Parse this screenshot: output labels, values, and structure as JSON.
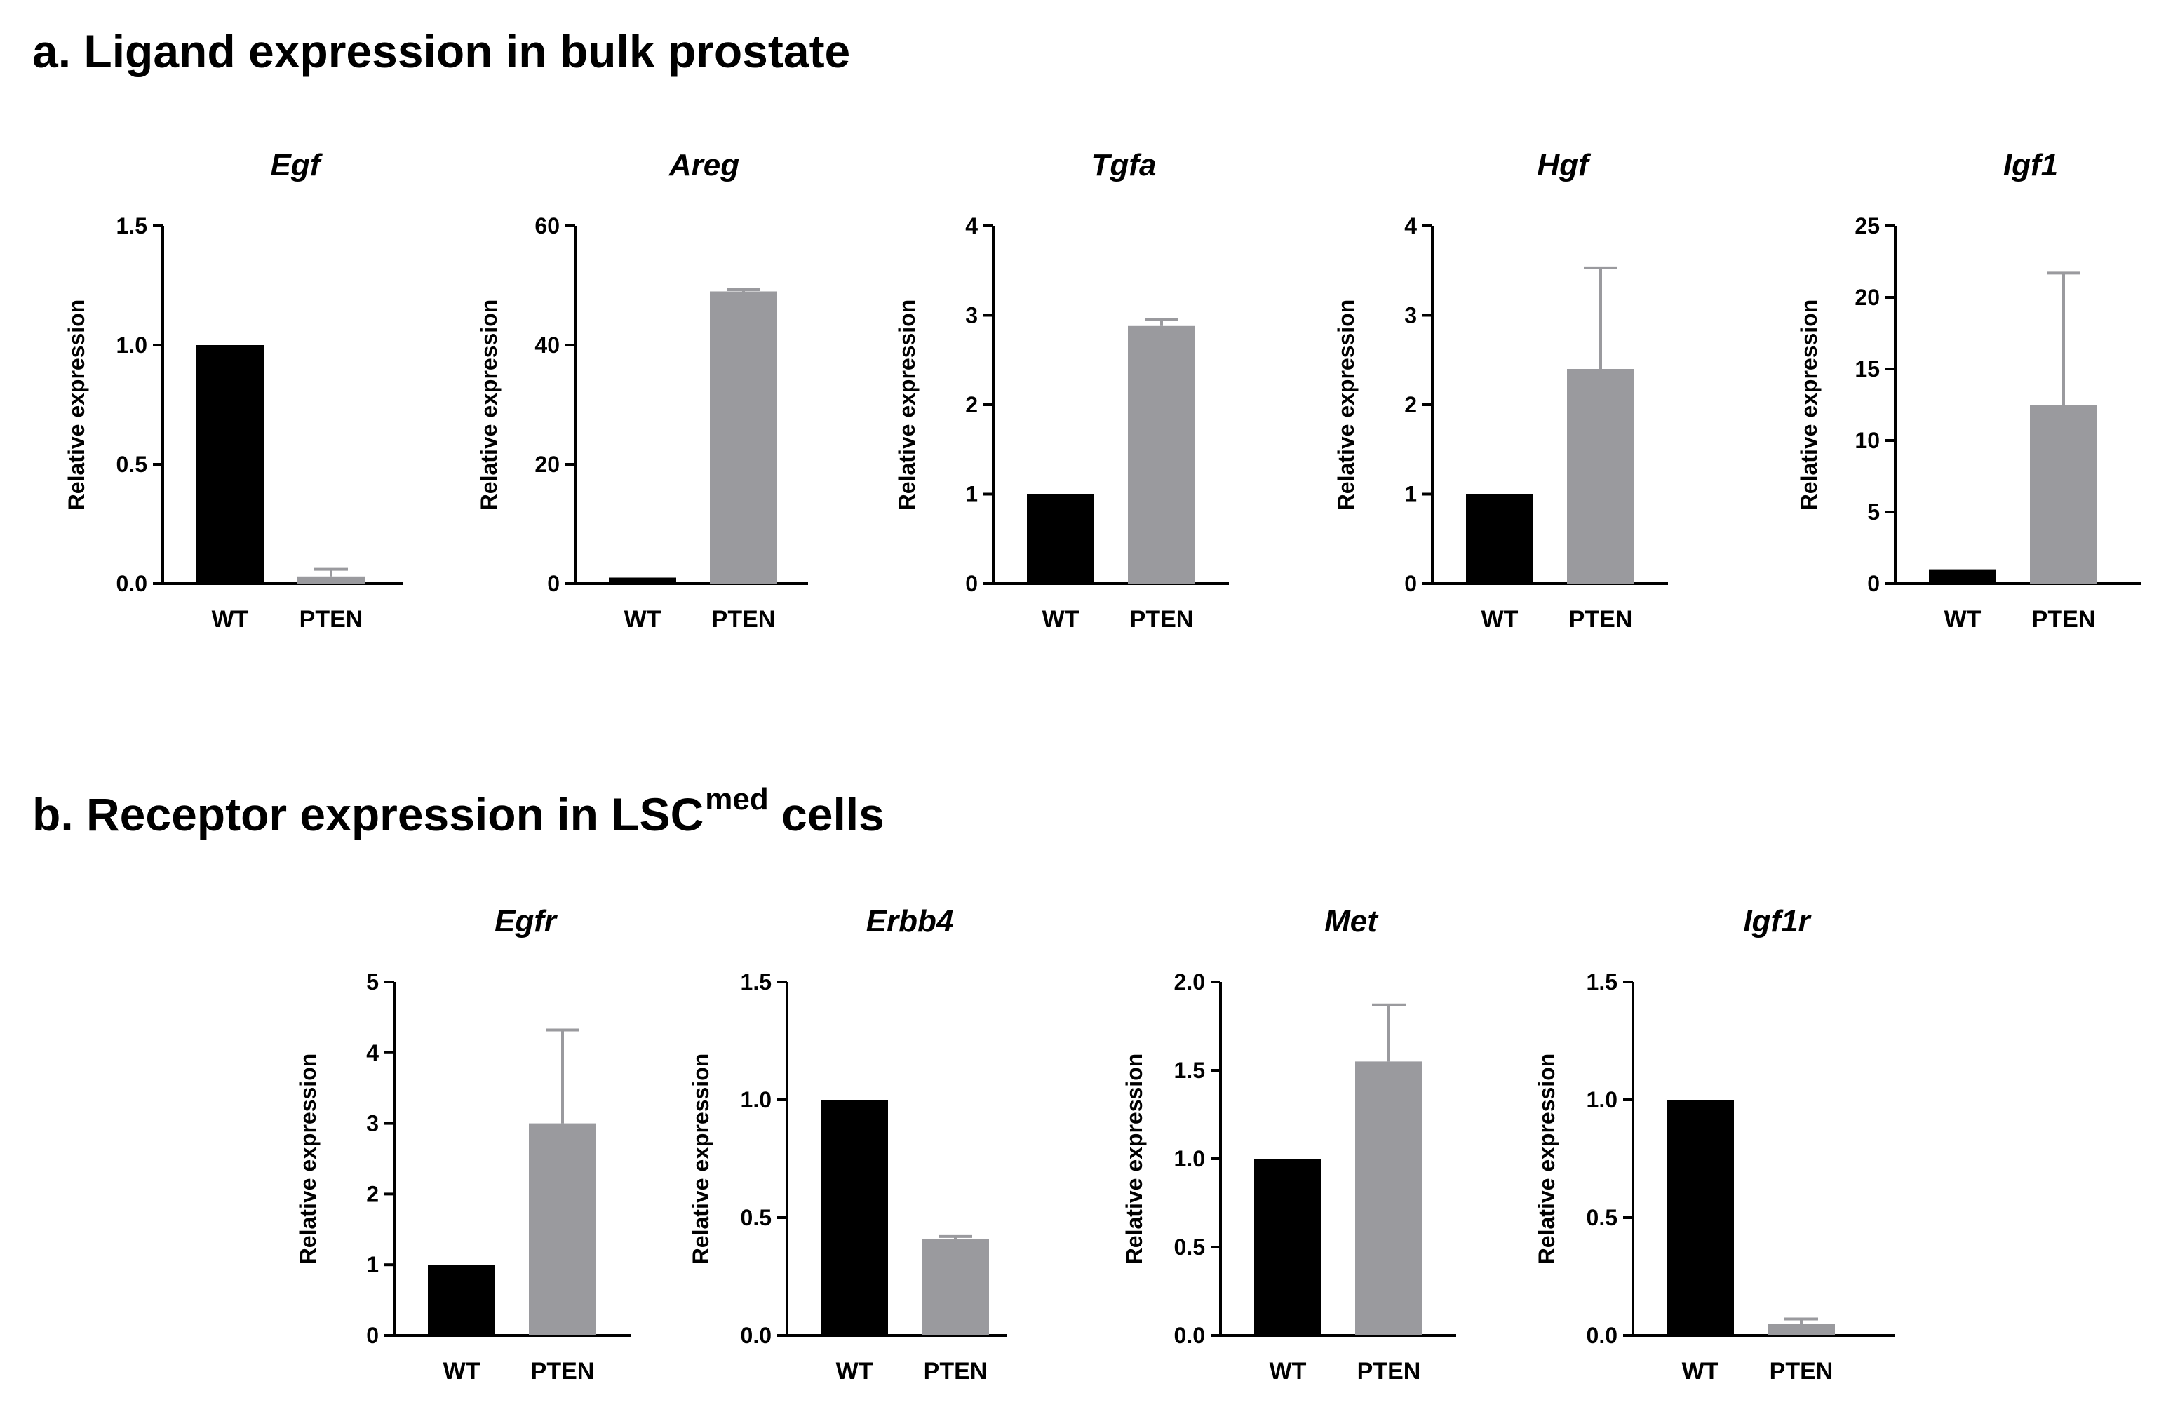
{
  "section_a": {
    "prefix": "a. Ligand expression in bulk prostate"
  },
  "section_b": {
    "prefix": "b. Receptor expression in LSC",
    "superscript": "med",
    "suffix": " cells"
  },
  "colors": {
    "WT": "#000000",
    "PTEN": "#9a9a9e",
    "axis": "#000000"
  },
  "chart_data": [
    {
      "type": "bar",
      "title": "Egf",
      "ylabel": "Relative expression",
      "categories": [
        "WT",
        "PTEN"
      ],
      "values": [
        1.0,
        0.03
      ],
      "error": [
        0,
        0.03
      ],
      "ylim": [
        0,
        1.5
      ],
      "yticks": [
        "0.0",
        "0.5",
        "1.0",
        "1.5"
      ]
    },
    {
      "type": "bar",
      "title": "Areg",
      "ylabel": "Relative expression",
      "categories": [
        "WT",
        "PTEN"
      ],
      "values": [
        1.0,
        49.0
      ],
      "error": [
        0,
        0.3
      ],
      "ylim": [
        0,
        60
      ],
      "yticks": [
        "0",
        "20",
        "40",
        "60"
      ]
    },
    {
      "type": "bar",
      "title": "Tgfa",
      "ylabel": "Relative expression",
      "categories": [
        "WT",
        "PTEN"
      ],
      "values": [
        1.0,
        2.88
      ],
      "error": [
        0,
        0.07
      ],
      "ylim": [
        0,
        4
      ],
      "yticks": [
        "0",
        "1",
        "2",
        "3",
        "4"
      ]
    },
    {
      "type": "bar",
      "title": "Hgf",
      "ylabel": "Relative expression",
      "categories": [
        "WT",
        "PTEN"
      ],
      "values": [
        1.0,
        2.4
      ],
      "error": [
        0,
        1.13
      ],
      "ylim": [
        0,
        4
      ],
      "yticks": [
        "0",
        "1",
        "2",
        "3",
        "4"
      ]
    },
    {
      "type": "bar",
      "title": "Igf1",
      "ylabel": "Relative expression",
      "categories": [
        "WT",
        "PTEN"
      ],
      "values": [
        1.0,
        12.5
      ],
      "error": [
        0,
        9.2
      ],
      "ylim": [
        0,
        25
      ],
      "yticks": [
        "0",
        "5",
        "10",
        "15",
        "20",
        "25"
      ]
    },
    {
      "type": "bar",
      "title": "Egfr",
      "ylabel": "Relative expression",
      "categories": [
        "WT",
        "PTEN"
      ],
      "values": [
        1.0,
        3.0
      ],
      "error": [
        0,
        1.32
      ],
      "ylim": [
        0,
        5
      ],
      "yticks": [
        "0",
        "1",
        "2",
        "3",
        "4",
        "5"
      ]
    },
    {
      "type": "bar",
      "title": "Erbb4",
      "ylabel": "Relative expression",
      "categories": [
        "WT",
        "PTEN"
      ],
      "values": [
        1.0,
        0.41
      ],
      "error": [
        0,
        0.01
      ],
      "ylim": [
        0,
        1.5
      ],
      "yticks": [
        "0.0",
        "0.5",
        "1.0",
        "1.5"
      ]
    },
    {
      "type": "bar",
      "title": "Met",
      "ylabel": "Relative expression",
      "categories": [
        "WT",
        "PTEN"
      ],
      "values": [
        1.0,
        1.55
      ],
      "error": [
        0,
        0.32
      ],
      "ylim": [
        0,
        2.0
      ],
      "yticks": [
        "0.0",
        "0.5",
        "1.0",
        "1.5",
        "2.0"
      ]
    },
    {
      "type": "bar",
      "title": "Igf1r",
      "ylabel": "Relative expression",
      "categories": [
        "WT",
        "PTEN"
      ],
      "values": [
        1.0,
        0.05
      ],
      "error": [
        0,
        0.02
      ],
      "ylim": [
        0,
        1.5
      ],
      "yticks": [
        "0.0",
        "0.5",
        "1.0",
        "1.5"
      ]
    }
  ]
}
